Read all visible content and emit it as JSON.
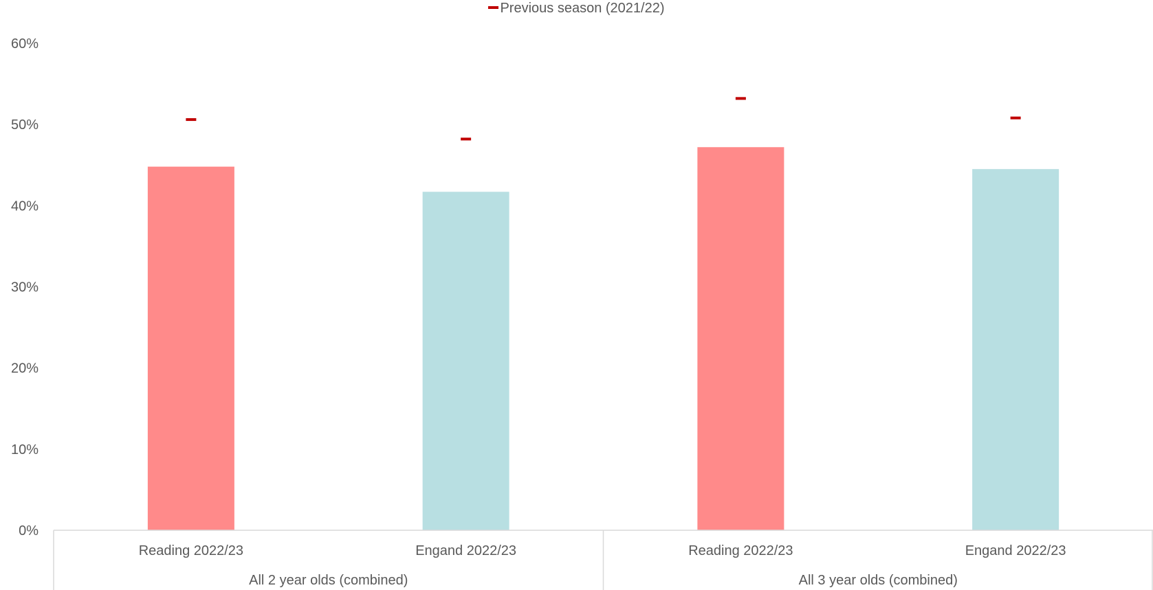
{
  "chart_data": {
    "type": "bar",
    "legend": {
      "position": "top",
      "entries": [
        {
          "label": "Previous season (2021/22)",
          "color": "#c00000",
          "marker": "dash"
        }
      ]
    },
    "y_axis": {
      "ticks": [
        "0%",
        "10%",
        "20%",
        "30%",
        "40%",
        "50%",
        "60%"
      ],
      "ylim": [
        0,
        60
      ],
      "grid": false
    },
    "groups": [
      {
        "label": "All 2 year olds (combined)",
        "categories": [
          "Reading 2022/23",
          "Engand 2022/23"
        ]
      },
      {
        "label": "All 3 year olds (combined)",
        "categories": [
          "Reading 2022/23",
          "Engand 2022/23"
        ]
      }
    ],
    "bars": [
      {
        "category": "Reading 2022/23",
        "group": "All 2 year olds (combined)",
        "value": 44.8,
        "color": "#ff8a8a"
      },
      {
        "category": "Engand 2022/23",
        "group": "All 2 year olds (combined)",
        "value": 41.7,
        "color": "#b8dfe2"
      },
      {
        "category": "Reading 2022/23",
        "group": "All 3 year olds (combined)",
        "value": 47.2,
        "color": "#ff8a8a"
      },
      {
        "category": "Engand 2022/23",
        "group": "All 3 year olds (combined)",
        "value": 44.5,
        "color": "#b8dfe2"
      }
    ],
    "previous_season_markers": [
      50.6,
      48.2,
      53.2,
      50.8
    ],
    "colors": {
      "reading": "#ff8a8a",
      "england": "#b8dfe2",
      "marker": "#c00000",
      "axis": "#d9d9d9",
      "text": "#595959"
    }
  }
}
